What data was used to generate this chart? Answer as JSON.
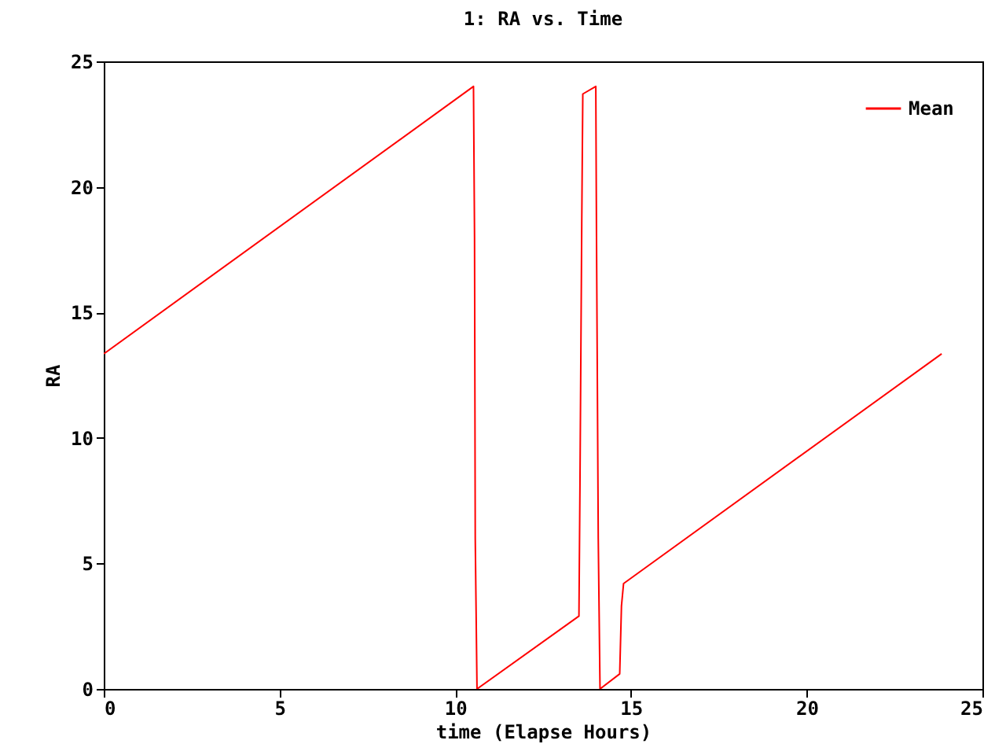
{
  "chart_data": {
    "type": "line",
    "title": "1: RA vs. Time",
    "xlabel": "time (Elapse Hours)",
    "ylabel": "RA",
    "xlim": [
      0,
      25
    ],
    "xticks": [
      0,
      5,
      10,
      15,
      20,
      25
    ],
    "ylim": [
      0,
      25
    ],
    "yticks": [
      0,
      5,
      10,
      15,
      20,
      25
    ],
    "grid": false,
    "legend": "top right",
    "marker": "none",
    "line_style": "solid",
    "series": [
      {
        "name": "Mean",
        "color": "#ff0000",
        "x": [
          0,
          10.52,
          10.55,
          10.57,
          10.62,
          13.52,
          13.55,
          13.6,
          13.63,
          14.0,
          14.02,
          14.07,
          14.12,
          14.68,
          14.73,
          14.79,
          23.84
        ],
        "values": [
          13.35,
          24.0,
          18.0,
          6.0,
          0,
          2.9,
          8.2,
          18.5,
          23.7,
          24.0,
          18.0,
          6.0,
          0,
          0.6,
          3.3,
          4.2,
          13.35
        ]
      }
    ]
  }
}
